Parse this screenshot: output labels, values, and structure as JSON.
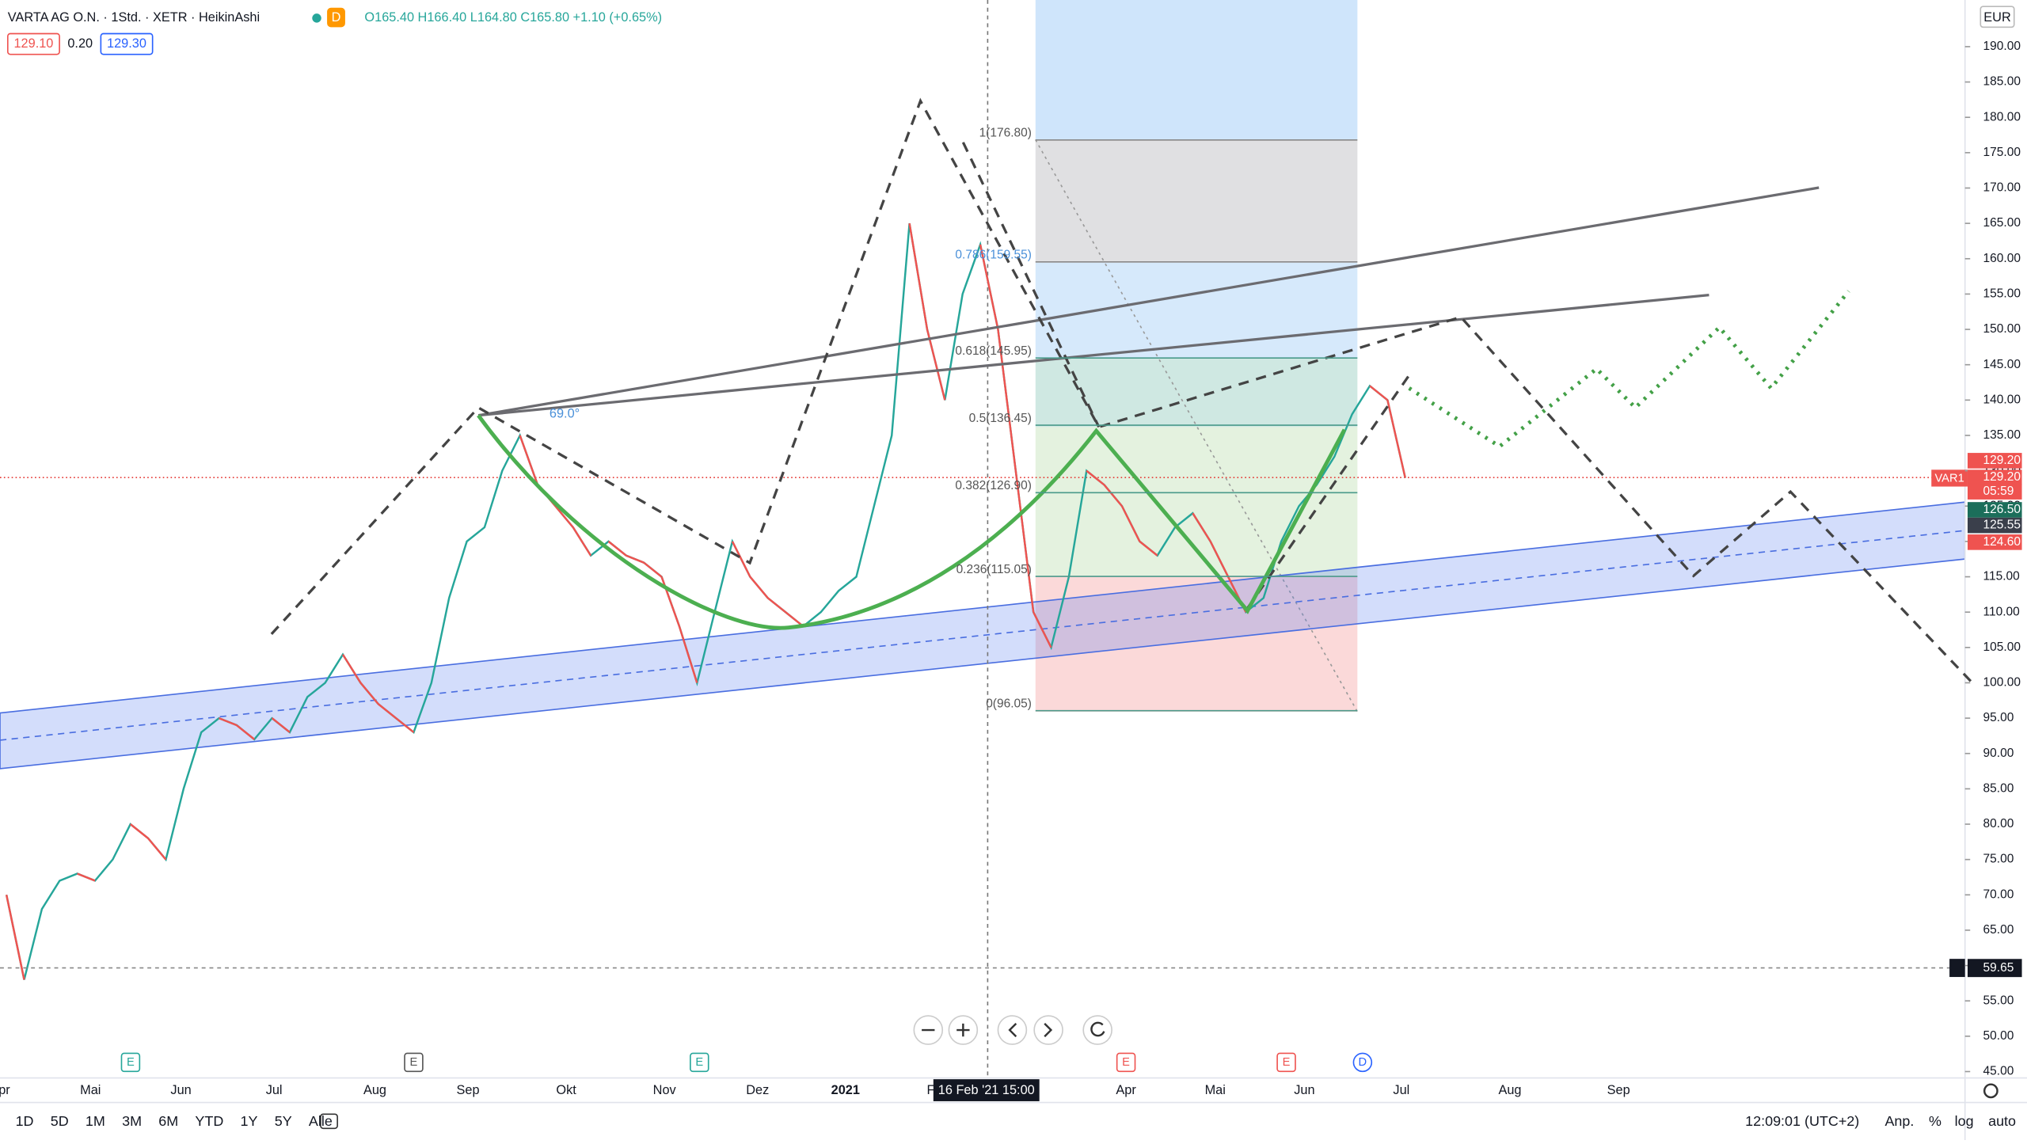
{
  "header": {
    "symbol": "VARTA AG O.N. · 1Std. · XETR · HeikinAshi",
    "badge": "D",
    "ohlc": "O165.40 H166.40 L164.80 C165.80 +1.10 (+0.65%)",
    "bid": "129.10",
    "spread": "0.20",
    "ask": "129.30"
  },
  "chart_data": {
    "type": "line",
    "color": "#26a69a",
    "values": [
      70,
      58,
      68,
      72,
      73,
      72,
      75,
      80,
      78,
      75,
      85,
      93,
      95,
      94,
      92,
      95,
      93,
      98,
      100,
      104,
      100,
      97,
      95,
      93,
      100,
      112,
      120,
      122,
      130,
      135,
      128,
      125,
      122,
      118,
      120,
      118,
      117,
      115,
      108,
      100,
      110,
      120,
      115,
      112,
      110,
      108,
      110,
      113,
      115,
      125,
      135,
      165,
      150,
      140,
      155,
      162,
      150,
      130,
      110,
      105,
      115,
      130,
      128,
      125,
      120,
      118,
      122,
      124,
      120,
      115,
      110,
      112,
      120,
      125,
      128,
      132,
      138,
      142,
      140,
      129
    ],
    "ylim": [
      44.1,
      196.6
    ],
    "yticks": [
      {
        "value": 190,
        "label": "190.00"
      },
      {
        "value": 185,
        "label": "185.00"
      },
      {
        "value": 180,
        "label": "180.00"
      },
      {
        "value": 175,
        "label": "175.00"
      },
      {
        "value": 170,
        "label": "170.00"
      },
      {
        "value": 165,
        "label": "165.00"
      },
      {
        "value": 160,
        "label": "160.00"
      },
      {
        "value": 155,
        "label": "155.00"
      },
      {
        "value": 150,
        "label": "150.00"
      },
      {
        "value": 145,
        "label": "145.00"
      },
      {
        "value": 140,
        "label": "140.00"
      },
      {
        "value": 135,
        "label": "135.00"
      },
      {
        "value": 130,
        "label": "130.00"
      },
      {
        "value": 125,
        "label": "125.00"
      },
      {
        "value": 120,
        "label": "120.00"
      },
      {
        "value": 115,
        "label": "115.00"
      },
      {
        "value": 110,
        "label": "110.00"
      },
      {
        "value": 105,
        "label": "105.00"
      },
      {
        "value": 100,
        "label": "100.00"
      },
      {
        "value": 95,
        "label": "95.00"
      },
      {
        "value": 90,
        "label": "90.00"
      },
      {
        "value": 85,
        "label": "85.00"
      },
      {
        "value": 80,
        "label": "80.00"
      },
      {
        "value": 75,
        "label": "75.00"
      },
      {
        "value": 70,
        "label": "70.00"
      },
      {
        "value": 65,
        "label": "65.00"
      },
      {
        "value": 60,
        "label": "60.00"
      },
      {
        "value": 55,
        "label": "55.00"
      },
      {
        "value": 50,
        "label": "50.00"
      },
      {
        "value": 45,
        "label": "45.00"
      }
    ],
    "time_labels": [
      "Apr",
      "Mai",
      "Jun",
      "Jul",
      "Aug",
      "Sep",
      "Okt",
      "Nov",
      "Dez",
      "2021",
      "F",
      "Apr",
      "Mai",
      "Jun",
      "Jul",
      "Aug",
      "Sep"
    ],
    "fib_levels": [
      {
        "value": 176.8,
        "label": "1(176.80)"
      },
      {
        "value": 159.55,
        "label": "0.786(159.55)"
      },
      {
        "value": 145.95,
        "label": "0.618(145.95)"
      },
      {
        "value": 136.45,
        "label": "0.5(136.45)"
      },
      {
        "value": 126.9,
        "label": "0.382(126.90)"
      },
      {
        "value": 115.05,
        "label": "0.236(115.05)"
      },
      {
        "value": 96.05,
        "label": "0(96.05)"
      }
    ],
    "angle_label": "69.0°",
    "price_labels": [
      "129.20",
      "129.20",
      "05:59",
      "126.50",
      "125.55",
      "124.60"
    ],
    "marker": "VAR1",
    "currency": "EUR",
    "crosshair_price": {
      "value": 59.65,
      "label": "59.65"
    },
    "crosshair_time": "16 Feb '21  15:00",
    "events": [
      "E",
      "E",
      "E",
      "E",
      "E",
      "D"
    ]
  },
  "toolbar": {
    "ranges": [
      "1D",
      "5D",
      "1M",
      "3M",
      "6M",
      "YTD",
      "1Y",
      "5Y",
      "Alle"
    ],
    "clock": "12:09:01 (UTC+2)",
    "options": [
      "Anp.",
      "%",
      "log",
      "auto"
    ]
  }
}
